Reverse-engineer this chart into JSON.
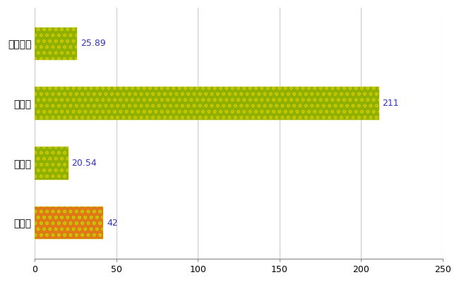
{
  "categories": [
    "若林区",
    "県平均",
    "県最大",
    "全国平均"
  ],
  "values": [
    42,
    20.54,
    211,
    25.89
  ],
  "bar_colors": [
    "#e07818",
    "#90b000",
    "#90b000",
    "#90b000"
  ],
  "hatch_colors": [
    "#c8c800",
    "#c8c800",
    "#c8c800",
    "#c8c800"
  ],
  "value_labels": [
    "42",
    "20.54",
    "211",
    "25.89"
  ],
  "label_color": "#3333bb",
  "xlim": [
    0,
    250
  ],
  "xticks": [
    0,
    50,
    100,
    150,
    200,
    250
  ],
  "grid_color": "#cccccc",
  "background_color": "#ffffff",
  "bar_height": 0.55,
  "figsize": [
    6.5,
    4.0
  ],
  "dpi": 100
}
